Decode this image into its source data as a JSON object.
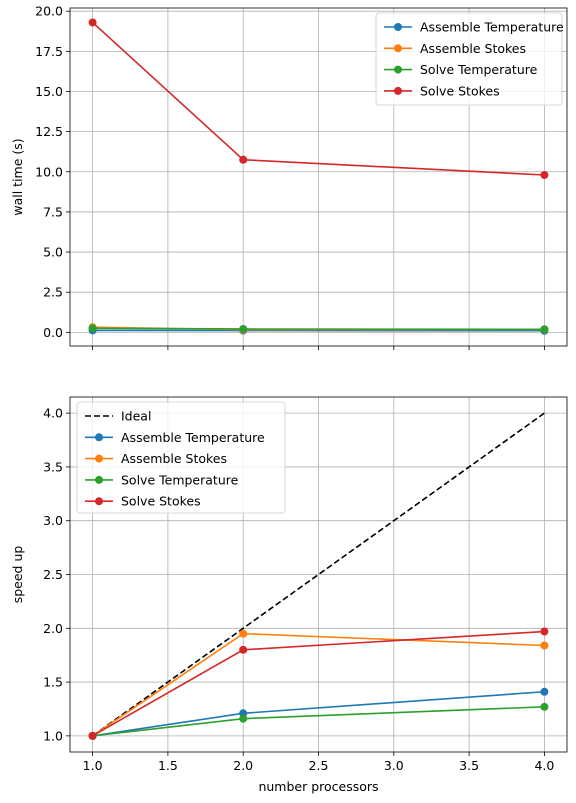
{
  "chart_data": [
    {
      "type": "line",
      "title": "",
      "xlabel": "",
      "ylabel": "wall time (s)",
      "x": [
        1,
        2,
        4
      ],
      "xlim": [
        0.85,
        4.15
      ],
      "ylim": [
        -0.85,
        20.2
      ],
      "xticks": [
        1.0,
        1.5,
        2.0,
        2.5,
        3.0,
        3.5,
        4.0
      ],
      "xtick_labels_visible": false,
      "yticks": [
        0.0,
        2.5,
        5.0,
        7.5,
        10.0,
        12.5,
        15.0,
        17.5,
        20.0
      ],
      "ytick_labels": [
        "0.0",
        "2.5",
        "5.0",
        "7.5",
        "10.0",
        "12.5",
        "15.0",
        "17.5",
        "20.0"
      ],
      "grid": true,
      "legend": "top-right",
      "series": [
        {
          "name": "Assemble Temperature",
          "values": [
            0.12,
            0.11,
            0.1
          ],
          "color": "#1f77b4",
          "marker": "circle",
          "dashed": false
        },
        {
          "name": "Assemble Stokes",
          "values": [
            0.32,
            0.17,
            0.18
          ],
          "color": "#ff7f0e",
          "marker": "circle",
          "dashed": false
        },
        {
          "name": "Solve Temperature",
          "values": [
            0.25,
            0.21,
            0.19
          ],
          "color": "#2ca02c",
          "marker": "circle",
          "dashed": false
        },
        {
          "name": "Solve Stokes",
          "values": [
            19.3,
            10.75,
            9.8
          ],
          "color": "#d62728",
          "marker": "circle",
          "dashed": false
        }
      ]
    },
    {
      "type": "line",
      "title": "",
      "xlabel": "number processors",
      "ylabel": "speed up",
      "x": [
        1,
        2,
        4
      ],
      "xlim": [
        0.85,
        4.15
      ],
      "ylim": [
        0.85,
        4.15
      ],
      "xticks": [
        1.0,
        1.5,
        2.0,
        2.5,
        3.0,
        3.5,
        4.0
      ],
      "xtick_labels": [
        "1.0",
        "1.5",
        "2.0",
        "2.5",
        "3.0",
        "3.5",
        "4.0"
      ],
      "xtick_labels_visible": true,
      "yticks": [
        1.0,
        1.5,
        2.0,
        2.5,
        3.0,
        3.5,
        4.0
      ],
      "ytick_labels": [
        "1.0",
        "1.5",
        "2.0",
        "2.5",
        "3.0",
        "3.5",
        "4.0"
      ],
      "grid": true,
      "legend": "top-left",
      "series": [
        {
          "name": "Ideal",
          "values": [
            1.0,
            2.0,
            4.0
          ],
          "color": "#000000",
          "marker": "none",
          "dashed": true
        },
        {
          "name": "Assemble Temperature",
          "values": [
            1.0,
            1.21,
            1.41
          ],
          "color": "#1f77b4",
          "marker": "circle",
          "dashed": false
        },
        {
          "name": "Assemble Stokes",
          "values": [
            1.0,
            1.95,
            1.84
          ],
          "color": "#ff7f0e",
          "marker": "circle",
          "dashed": false
        },
        {
          "name": "Solve Temperature",
          "values": [
            1.0,
            1.16,
            1.27
          ],
          "color": "#2ca02c",
          "marker": "circle",
          "dashed": false
        },
        {
          "name": "Solve Stokes",
          "values": [
            1.0,
            1.8,
            1.97
          ],
          "color": "#d62728",
          "marker": "circle",
          "dashed": false
        }
      ]
    }
  ]
}
